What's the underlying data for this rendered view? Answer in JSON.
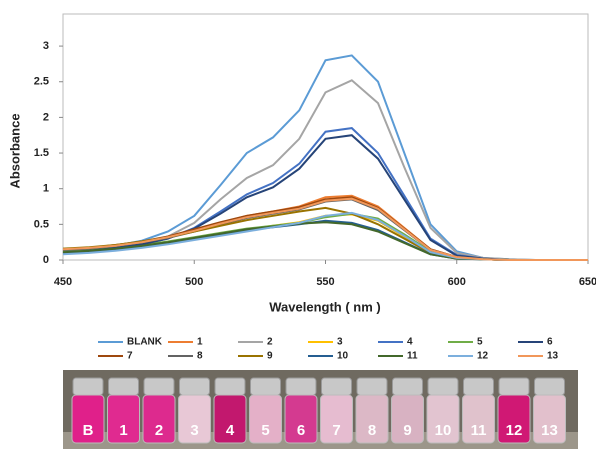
{
  "chart_data": {
    "type": "line",
    "x_label": "Wavelength ( nm )",
    "y_label": "Absorbance",
    "xlim": [
      450,
      650
    ],
    "xticks": [
      450,
      500,
      550,
      600,
      650
    ],
    "ylim": [
      0,
      3.45
    ],
    "yticks": [
      0,
      0.5,
      1,
      1.5,
      2,
      2.5,
      3
    ],
    "x": [
      450,
      460,
      470,
      480,
      490,
      500,
      510,
      520,
      530,
      540,
      550,
      560,
      570,
      580,
      590,
      600,
      610,
      620,
      630,
      640,
      650
    ],
    "series": [
      {
        "name": "BLANK",
        "color": "#5b9bd5",
        "values": [
          0.12,
          0.15,
          0.2,
          0.27,
          0.4,
          0.62,
          1.05,
          1.5,
          1.72,
          2.1,
          2.8,
          2.87,
          2.5,
          1.5,
          0.5,
          0.12,
          0.03,
          0.01,
          0,
          0,
          0
        ]
      },
      {
        "name": "1",
        "color": "#ed7d31",
        "values": [
          0.15,
          0.17,
          0.2,
          0.25,
          0.32,
          0.42,
          0.52,
          0.62,
          0.68,
          0.75,
          0.88,
          0.9,
          0.75,
          0.45,
          0.15,
          0.04,
          0.01,
          0,
          0,
          0,
          0
        ]
      },
      {
        "name": "2",
        "color": "#a5a5a5",
        "values": [
          0.1,
          0.13,
          0.17,
          0.23,
          0.33,
          0.52,
          0.85,
          1.15,
          1.33,
          1.7,
          2.35,
          2.52,
          2.2,
          1.3,
          0.45,
          0.1,
          0.03,
          0.01,
          0,
          0,
          0
        ]
      },
      {
        "name": "3",
        "color": "#ffc000",
        "values": [
          0.1,
          0.12,
          0.15,
          0.19,
          0.24,
          0.3,
          0.37,
          0.43,
          0.48,
          0.53,
          0.62,
          0.64,
          0.55,
          0.33,
          0.11,
          0.03,
          0.01,
          0,
          0,
          0,
          0
        ]
      },
      {
        "name": "4",
        "color": "#4472c4",
        "values": [
          0.1,
          0.13,
          0.17,
          0.22,
          0.3,
          0.45,
          0.68,
          0.92,
          1.08,
          1.35,
          1.8,
          1.85,
          1.5,
          0.9,
          0.3,
          0.07,
          0.02,
          0,
          0,
          0,
          0
        ]
      },
      {
        "name": "5",
        "color": "#70ad47",
        "values": [
          0.12,
          0.14,
          0.17,
          0.21,
          0.26,
          0.32,
          0.38,
          0.44,
          0.48,
          0.52,
          0.6,
          0.65,
          0.58,
          0.36,
          0.12,
          0.03,
          0.01,
          0,
          0,
          0,
          0
        ]
      },
      {
        "name": "6",
        "color": "#264478",
        "values": [
          0.1,
          0.13,
          0.17,
          0.22,
          0.3,
          0.44,
          0.65,
          0.88,
          1.02,
          1.28,
          1.7,
          1.75,
          1.42,
          0.85,
          0.28,
          0.06,
          0.02,
          0,
          0,
          0,
          0
        ]
      },
      {
        "name": "7",
        "color": "#9e480e",
        "values": [
          0.15,
          0.17,
          0.21,
          0.26,
          0.33,
          0.43,
          0.53,
          0.62,
          0.68,
          0.74,
          0.85,
          0.88,
          0.73,
          0.44,
          0.15,
          0.04,
          0.01,
          0,
          0,
          0,
          0
        ]
      },
      {
        "name": "8",
        "color": "#636363",
        "values": [
          0.14,
          0.16,
          0.2,
          0.25,
          0.31,
          0.4,
          0.5,
          0.59,
          0.65,
          0.71,
          0.82,
          0.85,
          0.7,
          0.42,
          0.14,
          0.04,
          0.01,
          0,
          0,
          0,
          0
        ]
      },
      {
        "name": "9",
        "color": "#997300",
        "values": [
          0.16,
          0.18,
          0.21,
          0.26,
          0.32,
          0.4,
          0.48,
          0.56,
          0.62,
          0.68,
          0.73,
          0.65,
          0.5,
          0.3,
          0.1,
          0.03,
          0.01,
          0,
          0,
          0,
          0
        ]
      },
      {
        "name": "10",
        "color": "#255e91",
        "values": [
          0.1,
          0.12,
          0.15,
          0.19,
          0.24,
          0.3,
          0.36,
          0.42,
          0.46,
          0.5,
          0.55,
          0.52,
          0.42,
          0.25,
          0.08,
          0.02,
          0.01,
          0,
          0,
          0,
          0
        ]
      },
      {
        "name": "11",
        "color": "#43682b",
        "values": [
          0.11,
          0.13,
          0.16,
          0.2,
          0.25,
          0.31,
          0.37,
          0.43,
          0.47,
          0.51,
          0.53,
          0.5,
          0.4,
          0.24,
          0.08,
          0.02,
          0.01,
          0,
          0,
          0,
          0
        ]
      },
      {
        "name": "12",
        "color": "#7cafdd",
        "values": [
          0.08,
          0.1,
          0.13,
          0.17,
          0.22,
          0.28,
          0.34,
          0.4,
          0.46,
          0.52,
          0.62,
          0.66,
          0.56,
          0.34,
          0.11,
          0.03,
          0.01,
          0,
          0,
          0,
          0
        ]
      },
      {
        "name": "13",
        "color": "#f1975a",
        "values": [
          0.15,
          0.17,
          0.2,
          0.25,
          0.32,
          0.41,
          0.51,
          0.6,
          0.66,
          0.72,
          0.83,
          0.86,
          0.72,
          0.43,
          0.14,
          0.04,
          0.01,
          0,
          0,
          0,
          0
        ]
      }
    ]
  },
  "photo": {
    "vial_labels": [
      "B",
      "1",
      "2",
      "3",
      "4",
      "5",
      "6",
      "7",
      "8",
      "9",
      "10",
      "11",
      "12",
      "13"
    ]
  }
}
